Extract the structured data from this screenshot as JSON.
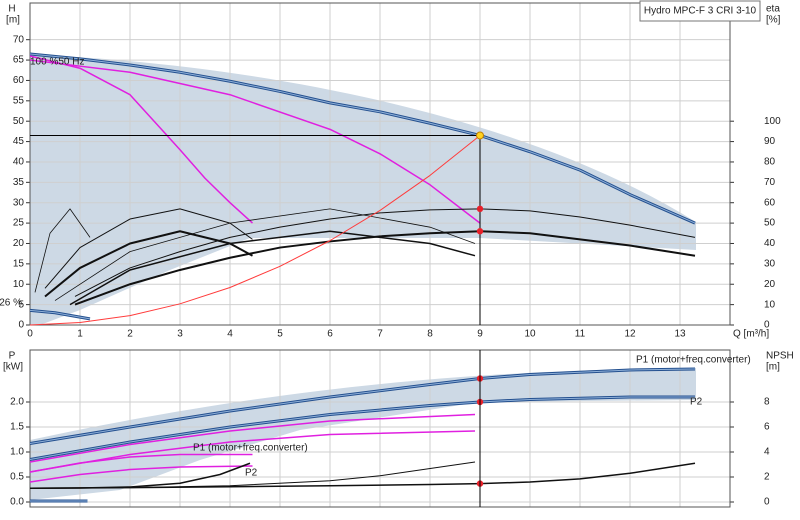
{
  "chart_data": [
    {
      "type": "line",
      "title": "Hydro MPC-F 3 CRI 3-10",
      "ylabel": "H",
      "yunit": "[m]",
      "y2label": "eta",
      "y2unit": "[%]",
      "xlabel": "Q [m³/h]",
      "xlim": [
        0,
        14
      ],
      "xticks": [
        0,
        1,
        2,
        3,
        4,
        5,
        6,
        7,
        8,
        9,
        10,
        11,
        12,
        13
      ],
      "xtick_labels": true,
      "ylim": [
        0,
        79
      ],
      "yticks": [
        0,
        5,
        10,
        15,
        20,
        25,
        30,
        35,
        40,
        45,
        50,
        55,
        60,
        65,
        70
      ],
      "y2lim": [
        0,
        158
      ],
      "y2ticks": [
        0,
        10,
        20,
        30,
        40,
        50,
        60,
        70,
        80,
        90,
        100
      ],
      "grid": true,
      "annotations": [
        "100 %50 Hz",
        "26 %"
      ],
      "duty_point": {
        "x": 9,
        "y": 46.5,
        "color": "#ffd21f"
      },
      "markers": [
        {
          "x": 9,
          "y": 57,
          "axis": "y2",
          "color": "#e8202a"
        },
        {
          "x": 9,
          "y": 46,
          "axis": "y2",
          "color": "#e8202a"
        }
      ],
      "series": [
        {
          "x": [
            0,
            1,
            2,
            3,
            4,
            5,
            6,
            7,
            8,
            9,
            10,
            11,
            12,
            13.3
          ],
          "values": [
            66.5,
            65.3,
            63.8,
            62,
            59.8,
            57.3,
            54.5,
            52.3,
            49.5,
            46.5,
            42.5,
            38,
            32,
            25
          ],
          "color": "#24508f",
          "double": true
        },
        {
          "x": [
            0,
            0.5,
            1.2
          ],
          "values": [
            3.6,
            3,
            1.5
          ],
          "color": "#24508f",
          "double": true
        },
        {
          "x": [
            0,
            1,
            2,
            3,
            3.5,
            4,
            4.45
          ],
          "values": [
            66,
            63,
            56.5,
            43,
            36,
            30,
            25
          ],
          "color": "#e020e0",
          "width": 1.5
        },
        {
          "x": [
            0,
            2,
            4,
            6,
            7,
            8,
            9
          ],
          "values": [
            65,
            62,
            56.5,
            48,
            42,
            34.4,
            25
          ],
          "color": "#e020e0",
          "width": 1.5
        },
        {
          "x": [
            0.9,
            2,
            3,
            4,
            5,
            6,
            7,
            8,
            9,
            10,
            11,
            12,
            13.3
          ],
          "values": [
            14,
            28,
            36,
            43,
            48,
            52,
            55,
            56.5,
            57,
            56,
            53,
            49,
            43
          ],
          "color": "#111",
          "width": 1,
          "axis": "y2"
        },
        {
          "x": [
            0.9,
            2,
            3,
            4,
            5,
            6,
            7,
            8,
            9,
            10,
            11,
            12,
            13.3
          ],
          "values": [
            10,
            20,
            27,
            33,
            38,
            41,
            43.5,
            45,
            46,
            45,
            42,
            39,
            34
          ],
          "color": "#111",
          "width": 2,
          "axis": "y2"
        },
        {
          "x": [
            0.3,
            1,
            2,
            3,
            4,
            4.45
          ],
          "values": [
            18,
            38,
            52,
            57,
            50,
            42
          ],
          "color": "#111",
          "width": 1,
          "axis": "y2"
        },
        {
          "x": [
            0.3,
            1,
            2,
            3,
            4,
            4.45
          ],
          "values": [
            14,
            28,
            40,
            46,
            40,
            34
          ],
          "color": "#111",
          "width": 2,
          "axis": "y2"
        },
        {
          "x": [
            0.1,
            0.4,
            0.8,
            1.2
          ],
          "values": [
            16,
            45,
            57,
            43
          ],
          "color": "#111",
          "width": 0.8,
          "axis": "y2"
        },
        {
          "x": [
            0.5,
            2,
            4,
            6,
            8,
            8.9
          ],
          "values": [
            12,
            36,
            50,
            57,
            48,
            40
          ],
          "color": "#111",
          "width": 0.8,
          "axis": "y2"
        },
        {
          "x": [
            0.8,
            2,
            4,
            6,
            8,
            8.9
          ],
          "values": [
            10,
            27,
            40,
            46,
            40,
            34
          ],
          "color": "#111",
          "width": 1.5,
          "axis": "y2"
        },
        {
          "x": [
            0,
            1,
            2,
            3,
            4,
            5,
            6,
            7,
            8,
            9
          ],
          "values": [
            0,
            0.6,
            2.3,
            5.2,
            9.2,
            14.4,
            20.7,
            28.1,
            36.7,
            46.5
          ],
          "color": "#ff3b3b",
          "width": 1
        }
      ]
    },
    {
      "type": "line",
      "ylabel": "P",
      "yunit": "[kW]",
      "y2label": "NPSH",
      "y2unit": "[m]",
      "xlim": [
        0,
        14
      ],
      "xticks": [
        0,
        1,
        2,
        3,
        4,
        5,
        6,
        7,
        8,
        9,
        10,
        11,
        12,
        13
      ],
      "xtick_labels": false,
      "ylim": [
        -0.1,
        3.04
      ],
      "yticks": [
        {
          "value": 0,
          "label": "0.0"
        },
        0.5,
        {
          "value": 1,
          "label": "1.0"
        },
        1.5,
        {
          "value": 2,
          "label": "2.0"
        }
      ],
      "y2lim": [
        -0.4,
        12.16
      ],
      "y2ticks": [
        0,
        2,
        4,
        6,
        8
      ],
      "grid": true,
      "annotations": [
        "P1 (motor+freq.converter)",
        "P2",
        "P1 (motor+freq.converter)",
        "P2"
      ],
      "markers": [
        {
          "x": 9,
          "y": 2.47,
          "color": "#e8202a"
        },
        {
          "x": 9,
          "y": 2.0,
          "color": "#e8202a"
        },
        {
          "x": 9,
          "y": 1.47,
          "axis": "y2",
          "color": "#e8202a"
        }
      ],
      "series": [
        {
          "x": [
            0,
            2,
            4,
            6,
            8,
            9,
            10,
            12,
            13.3
          ],
          "values": [
            1.17,
            1.5,
            1.82,
            2.1,
            2.35,
            2.47,
            2.55,
            2.64,
            2.66
          ],
          "color": "#24508f",
          "double": true
        },
        {
          "x": [
            0,
            2,
            4,
            6,
            8,
            9,
            10,
            12,
            13.3
          ],
          "values": [
            0.85,
            1.2,
            1.5,
            1.75,
            1.93,
            2.0,
            2.05,
            2.1,
            2.1
          ],
          "color": "#24508f",
          "double": true
        },
        {
          "x": [
            0,
            1.15
          ],
          "values": [
            0.02,
            0.02
          ],
          "color": "#24508f",
          "double": true
        },
        {
          "x": [
            0,
            2,
            4,
            6,
            8.9
          ],
          "values": [
            0.8,
            1.15,
            1.42,
            1.62,
            1.75
          ],
          "color": "#e020e0",
          "width": 1.5
        },
        {
          "x": [
            0,
            2,
            4,
            6,
            8.9
          ],
          "values": [
            0.6,
            0.95,
            1.2,
            1.35,
            1.42
          ],
          "color": "#e020e0",
          "width": 1.5
        },
        {
          "x": [
            0,
            1,
            2,
            3,
            4.45
          ],
          "values": [
            0.6,
            0.78,
            0.9,
            0.95,
            0.95
          ],
          "color": "#e020e0",
          "width": 1.5
        },
        {
          "x": [
            0,
            1,
            2,
            3,
            4.45
          ],
          "values": [
            0.4,
            0.55,
            0.65,
            0.7,
            0.72
          ],
          "color": "#e020e0",
          "width": 1.5
        },
        {
          "x": [
            0,
            2,
            4,
            6,
            8,
            9,
            10,
            11,
            12,
            13.3
          ],
          "values": [
            1.1,
            1.15,
            1.22,
            1.3,
            1.4,
            1.47,
            1.6,
            1.85,
            2.3,
            3.1
          ],
          "color": "#111",
          "width": 1.5,
          "axis": "y2"
        },
        {
          "x": [
            0,
            1,
            2,
            3,
            3.8,
            4.4
          ],
          "values": [
            1.1,
            1.12,
            1.2,
            1.5,
            2.2,
            3.1
          ],
          "color": "#111",
          "width": 1.5,
          "axis": "y2"
        },
        {
          "x": [
            0,
            2,
            4,
            6,
            7,
            8.9
          ],
          "values": [
            1.1,
            1.15,
            1.3,
            1.7,
            2.1,
            3.2
          ],
          "color": "#111",
          "width": 1,
          "axis": "y2"
        }
      ]
    }
  ]
}
